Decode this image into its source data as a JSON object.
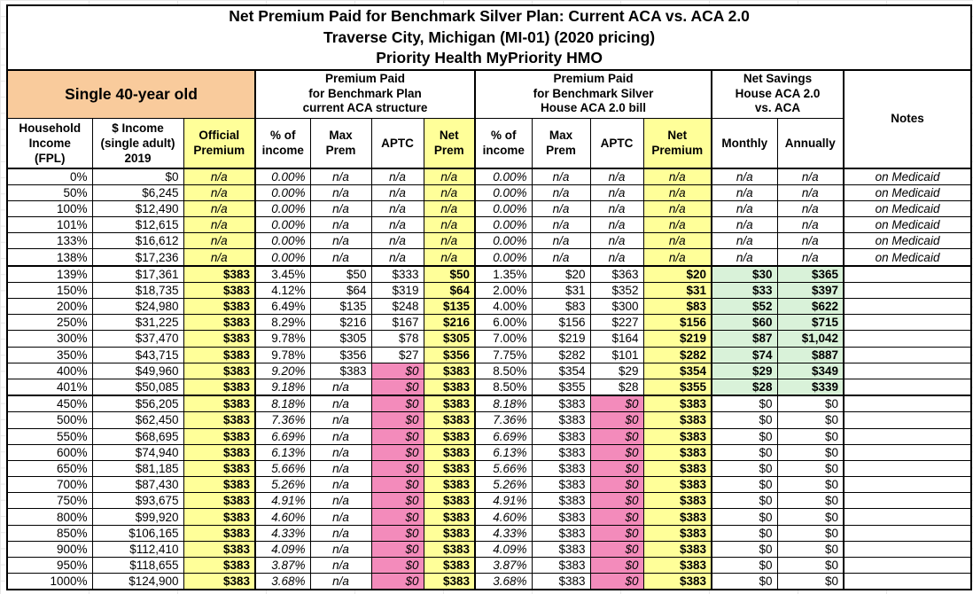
{
  "title": {
    "line1": "Net Premium Paid for Benchmark Silver Plan: Current ACA vs. ACA 2.0",
    "line2": "Traverse City, Michigan (MI-01) (2020 pricing)",
    "line3": "Priority Health MyPriority HMO"
  },
  "header_groups": {
    "person": "Single 40-year old",
    "current_aca": "Premium Paid\nfor Benchmark Plan\ncurrent ACA structure",
    "house_aca2": "Premium Paid\nfor Benchmark Silver\nHouse ACA 2.0 bill",
    "net_savings": "Net Savings\nHouse ACA 2.0\nvs. ACA",
    "notes": "Notes"
  },
  "columns": [
    "Household\nIncome\n(FPL)",
    "$ Income\n(single adult)\n2019",
    "Official\nPremium",
    "% of\nincome",
    "Max\nPrem",
    "APTC",
    "Net\nPrem",
    "% of\nincome",
    "Max\nPrem",
    "APTC",
    "Net\nPremium",
    "Monthly",
    "Annually"
  ],
  "colors": {
    "orange": "#F9CB9C",
    "yellow": "#FFFF99",
    "pink": "#F38BBB",
    "green": "#D9F2D9",
    "border": "#000000"
  },
  "rows": [
    {
      "group": "medicaid",
      "cells": [
        "0%",
        "$0",
        "n/a",
        "0.00%",
        "n/a",
        "n/a",
        "n/a",
        "0.00%",
        "n/a",
        "n/a",
        "n/a",
        "n/a",
        "n/a",
        "on Medicaid"
      ]
    },
    {
      "group": "medicaid",
      "cells": [
        "50%",
        "$6,245",
        "n/a",
        "0.00%",
        "n/a",
        "n/a",
        "n/a",
        "0.00%",
        "n/a",
        "n/a",
        "n/a",
        "n/a",
        "n/a",
        "on Medicaid"
      ]
    },
    {
      "group": "medicaid",
      "cells": [
        "100%",
        "$12,490",
        "n/a",
        "0.00%",
        "n/a",
        "n/a",
        "n/a",
        "0.00%",
        "n/a",
        "n/a",
        "n/a",
        "n/a",
        "n/a",
        "on Medicaid"
      ]
    },
    {
      "group": "medicaid",
      "cells": [
        "101%",
        "$12,615",
        "n/a",
        "0.00%",
        "n/a",
        "n/a",
        "n/a",
        "0.00%",
        "n/a",
        "n/a",
        "n/a",
        "n/a",
        "n/a",
        "on Medicaid"
      ]
    },
    {
      "group": "medicaid",
      "cells": [
        "133%",
        "$16,612",
        "n/a",
        "0.00%",
        "n/a",
        "n/a",
        "n/a",
        "0.00%",
        "n/a",
        "n/a",
        "n/a",
        "n/a",
        "n/a",
        "on Medicaid"
      ]
    },
    {
      "group": "medicaid",
      "cells": [
        "138%",
        "$17,236",
        "n/a",
        "0.00%",
        "n/a",
        "n/a",
        "n/a",
        "0.00%",
        "n/a",
        "n/a",
        "n/a",
        "n/a",
        "n/a",
        "on Medicaid"
      ]
    },
    {
      "group": "subsidy",
      "cells": [
        "139%",
        "$17,361",
        "$383",
        "3.45%",
        "$50",
        "$333",
        "$50",
        "1.35%",
        "$20",
        "$363",
        "$20",
        "$30",
        "$365",
        ""
      ]
    },
    {
      "group": "subsidy",
      "cells": [
        "150%",
        "$18,735",
        "$383",
        "4.12%",
        "$64",
        "$319",
        "$64",
        "2.00%",
        "$31",
        "$352",
        "$31",
        "$33",
        "$397",
        ""
      ]
    },
    {
      "group": "subsidy",
      "cells": [
        "200%",
        "$24,980",
        "$383",
        "6.49%",
        "$135",
        "$248",
        "$135",
        "4.00%",
        "$83",
        "$300",
        "$83",
        "$52",
        "$622",
        ""
      ]
    },
    {
      "group": "subsidy",
      "cells": [
        "250%",
        "$31,225",
        "$383",
        "8.29%",
        "$216",
        "$167",
        "$216",
        "6.00%",
        "$156",
        "$227",
        "$156",
        "$60",
        "$715",
        ""
      ]
    },
    {
      "group": "subsidy",
      "cells": [
        "300%",
        "$37,470",
        "$383",
        "9.78%",
        "$305",
        "$78",
        "$305",
        "7.00%",
        "$219",
        "$164",
        "$219",
        "$87",
        "$1,042",
        ""
      ]
    },
    {
      "group": "subsidy",
      "cells": [
        "350%",
        "$43,715",
        "$383",
        "9.78%",
        "$356",
        "$27",
        "$356",
        "7.75%",
        "$282",
        "$101",
        "$282",
        "$74",
        "$887",
        ""
      ]
    },
    {
      "group": "subsidy",
      "cells": [
        "400%",
        "$49,960",
        "$383",
        "9.20%",
        "$383",
        "$0",
        "$383",
        "8.50%",
        "$354",
        "$29",
        "$354",
        "$29",
        "$349",
        ""
      ]
    },
    {
      "group": "subsidy",
      "cells": [
        "401%",
        "$50,085",
        "$383",
        "9.18%",
        "n/a",
        "$0",
        "$383",
        "8.50%",
        "$355",
        "$28",
        "$355",
        "$28",
        "$339",
        ""
      ]
    },
    {
      "group": "flat",
      "cells": [
        "450%",
        "$56,205",
        "$383",
        "8.18%",
        "n/a",
        "$0",
        "$383",
        "8.18%",
        "$383",
        "$0",
        "$383",
        "$0",
        "$0",
        ""
      ]
    },
    {
      "group": "flat",
      "cells": [
        "500%",
        "$62,450",
        "$383",
        "7.36%",
        "n/a",
        "$0",
        "$383",
        "7.36%",
        "$383",
        "$0",
        "$383",
        "$0",
        "$0",
        ""
      ]
    },
    {
      "group": "flat",
      "cells": [
        "550%",
        "$68,695",
        "$383",
        "6.69%",
        "n/a",
        "$0",
        "$383",
        "6.69%",
        "$383",
        "$0",
        "$383",
        "$0",
        "$0",
        ""
      ]
    },
    {
      "group": "flat",
      "cells": [
        "600%",
        "$74,940",
        "$383",
        "6.13%",
        "n/a",
        "$0",
        "$383",
        "6.13%",
        "$383",
        "$0",
        "$383",
        "$0",
        "$0",
        ""
      ]
    },
    {
      "group": "flat",
      "cells": [
        "650%",
        "$81,185",
        "$383",
        "5.66%",
        "n/a",
        "$0",
        "$383",
        "5.66%",
        "$383",
        "$0",
        "$383",
        "$0",
        "$0",
        ""
      ]
    },
    {
      "group": "flat",
      "cells": [
        "700%",
        "$87,430",
        "$383",
        "5.26%",
        "n/a",
        "$0",
        "$383",
        "5.26%",
        "$383",
        "$0",
        "$383",
        "$0",
        "$0",
        ""
      ]
    },
    {
      "group": "flat",
      "cells": [
        "750%",
        "$93,675",
        "$383",
        "4.91%",
        "n/a",
        "$0",
        "$383",
        "4.91%",
        "$383",
        "$0",
        "$383",
        "$0",
        "$0",
        ""
      ]
    },
    {
      "group": "flat",
      "cells": [
        "800%",
        "$99,920",
        "$383",
        "4.60%",
        "n/a",
        "$0",
        "$383",
        "4.60%",
        "$383",
        "$0",
        "$383",
        "$0",
        "$0",
        ""
      ]
    },
    {
      "group": "flat",
      "cells": [
        "850%",
        "$106,165",
        "$383",
        "4.33%",
        "n/a",
        "$0",
        "$383",
        "4.33%",
        "$383",
        "$0",
        "$383",
        "$0",
        "$0",
        ""
      ]
    },
    {
      "group": "flat",
      "cells": [
        "900%",
        "$112,410",
        "$383",
        "4.09%",
        "n/a",
        "$0",
        "$383",
        "4.09%",
        "$383",
        "$0",
        "$383",
        "$0",
        "$0",
        ""
      ]
    },
    {
      "group": "flat",
      "cells": [
        "950%",
        "$118,655",
        "$383",
        "3.87%",
        "n/a",
        "$0",
        "$383",
        "3.87%",
        "$383",
        "$0",
        "$383",
        "$0",
        "$0",
        ""
      ]
    },
    {
      "group": "flat",
      "cells": [
        "1000%",
        "$124,900",
        "$383",
        "3.68%",
        "n/a",
        "$0",
        "$383",
        "3.68%",
        "$383",
        "$0",
        "$383",
        "$0",
        "$0",
        ""
      ]
    }
  ]
}
